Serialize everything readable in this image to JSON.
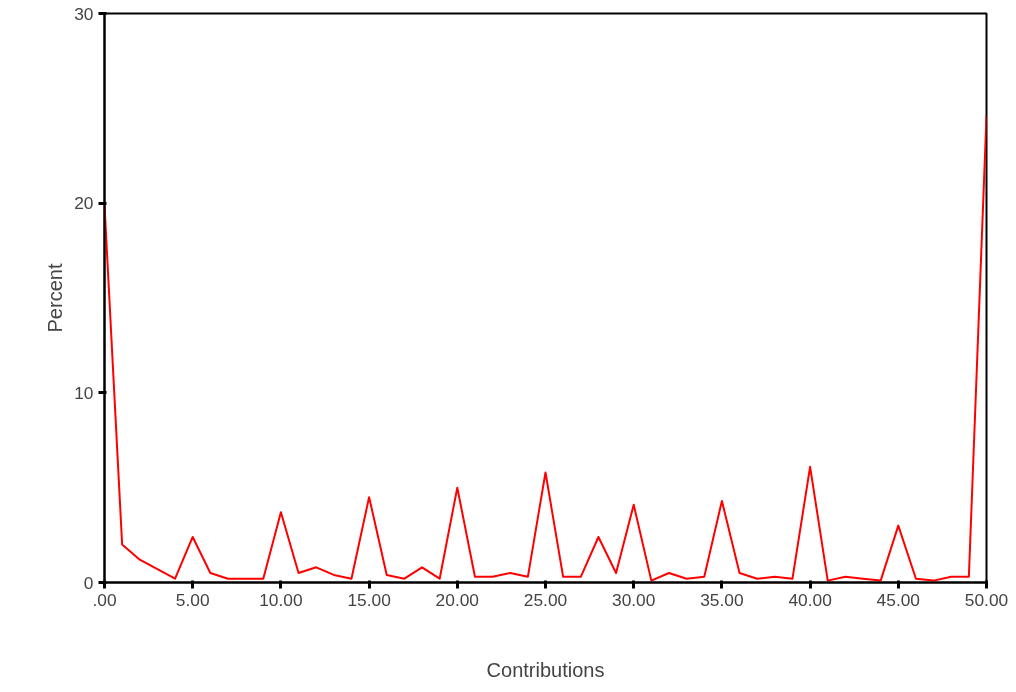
{
  "chart_data": {
    "type": "line",
    "xlabel": "Contributions",
    "ylabel": "Percent",
    "x": [
      0,
      1,
      2,
      3,
      4,
      5,
      6,
      7,
      8,
      9,
      10,
      11,
      12,
      13,
      14,
      15,
      16,
      17,
      18,
      19,
      20,
      21,
      22,
      23,
      24,
      25,
      26,
      27,
      28,
      29,
      30,
      31,
      32,
      33,
      34,
      35,
      36,
      37,
      38,
      39,
      40,
      41,
      42,
      43,
      44,
      45,
      46,
      47,
      48,
      49,
      50
    ],
    "series": [
      {
        "color": "#ff0000",
        "values": [
          19.9,
          2.0,
          1.2,
          0.7,
          0.2,
          2.4,
          0.5,
          0.2,
          0.2,
          0.2,
          3.7,
          0.5,
          0.8,
          0.4,
          0.2,
          4.5,
          0.4,
          0.2,
          0.8,
          0.2,
          5.0,
          0.3,
          0.3,
          0.5,
          0.3,
          5.8,
          0.3,
          0.3,
          2.4,
          0.5,
          4.1,
          0.1,
          0.5,
          0.2,
          0.3,
          4.3,
          0.5,
          0.2,
          0.3,
          0.2,
          6.1,
          0.1,
          0.3,
          0.2,
          0.1,
          3.0,
          0.2,
          0.1,
          0.3,
          0.3,
          24.6
        ]
      }
    ],
    "xlim": [
      0,
      50
    ],
    "ylim": [
      0,
      30
    ],
    "xticks": [
      {
        "value": 0,
        "label": ".00"
      },
      {
        "value": 5,
        "label": "5.00"
      },
      {
        "value": 10,
        "label": "10.00"
      },
      {
        "value": 15,
        "label": "15.00"
      },
      {
        "value": 20,
        "label": "20.00"
      },
      {
        "value": 25,
        "label": "25.00"
      },
      {
        "value": 30,
        "label": "30.00"
      },
      {
        "value": 35,
        "label": "35.00"
      },
      {
        "value": 40,
        "label": "40.00"
      },
      {
        "value": 45,
        "label": "45.00"
      },
      {
        "value": 50,
        "label": "50.00"
      }
    ],
    "yticks": [
      0,
      10,
      20,
      30
    ],
    "grid": false,
    "line_style": "solid",
    "marker": "none"
  }
}
